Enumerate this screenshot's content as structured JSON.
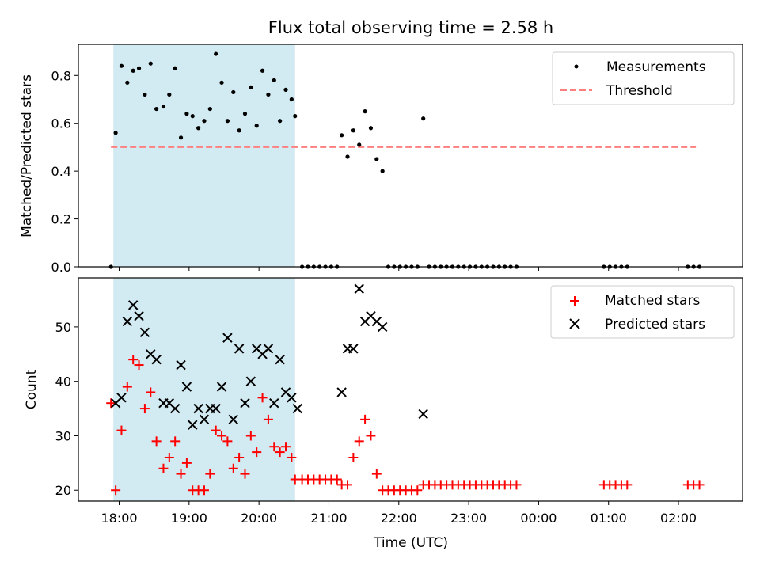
{
  "chart_data": [
    {
      "type": "scatter",
      "title": "Flux total observing time = 2.58 h",
      "ylabel": "Matched/Predicted stars",
      "xlabel": "",
      "ylim": [
        0,
        0.93
      ],
      "yticks": [
        0.0,
        0.2,
        0.4,
        0.6,
        0.8
      ],
      "ytick_labels": [
        "0.0",
        "0.2",
        "0.4",
        "0.6",
        "0.8"
      ],
      "legend_position": "top-right",
      "shaded_region": {
        "from": "17:55",
        "to": "20:31",
        "color": "#add8e6"
      },
      "series": [
        {
          "name": "Measurements",
          "marker": "dot",
          "color": "#000000",
          "points": [
            [
              "17:53",
              0.0
            ],
            [
              "17:57",
              0.56
            ],
            [
              "18:02",
              0.84
            ],
            [
              "18:07",
              0.77
            ],
            [
              "18:12",
              0.82
            ],
            [
              "18:17",
              0.83
            ],
            [
              "18:22",
              0.72
            ],
            [
              "18:27",
              0.85
            ],
            [
              "18:32",
              0.66
            ],
            [
              "18:38",
              0.67
            ],
            [
              "18:43",
              0.72
            ],
            [
              "18:48",
              0.83
            ],
            [
              "18:53",
              0.54
            ],
            [
              "18:58",
              0.64
            ],
            [
              "19:03",
              0.63
            ],
            [
              "19:08",
              0.58
            ],
            [
              "19:13",
              0.61
            ],
            [
              "19:18",
              0.66
            ],
            [
              "19:23",
              0.89
            ],
            [
              "19:28",
              0.77
            ],
            [
              "19:33",
              0.61
            ],
            [
              "19:38",
              0.73
            ],
            [
              "19:43",
              0.57
            ],
            [
              "19:48",
              0.64
            ],
            [
              "19:53",
              0.75
            ],
            [
              "19:58",
              0.59
            ],
            [
              "20:03",
              0.82
            ],
            [
              "20:08",
              0.72
            ],
            [
              "20:13",
              0.78
            ],
            [
              "20:18",
              0.61
            ],
            [
              "20:23",
              0.74
            ],
            [
              "20:28",
              0.7
            ],
            [
              "20:31",
              0.63
            ],
            [
              "20:37",
              0.0
            ],
            [
              "20:42",
              0.0
            ],
            [
              "20:47",
              0.0
            ],
            [
              "20:52",
              0.0
            ],
            [
              "20:57",
              0.0
            ],
            [
              "21:02",
              0.0
            ],
            [
              "21:07",
              0.0
            ],
            [
              "21:11",
              0.55
            ],
            [
              "21:16",
              0.46
            ],
            [
              "21:21",
              0.57
            ],
            [
              "21:26",
              0.51
            ],
            [
              "21:31",
              0.65
            ],
            [
              "21:36",
              0.58
            ],
            [
              "21:41",
              0.45
            ],
            [
              "21:46",
              0.4
            ],
            [
              "21:51",
              0.0
            ],
            [
              "21:56",
              0.0
            ],
            [
              "22:01",
              0.0
            ],
            [
              "22:06",
              0.0
            ],
            [
              "22:11",
              0.0
            ],
            [
              "22:16",
              0.0
            ],
            [
              "22:21",
              0.62
            ],
            [
              "22:26",
              0.0
            ],
            [
              "22:31",
              0.0
            ],
            [
              "22:36",
              0.0
            ],
            [
              "22:41",
              0.0
            ],
            [
              "22:46",
              0.0
            ],
            [
              "22:51",
              0.0
            ],
            [
              "22:56",
              0.0
            ],
            [
              "23:01",
              0.0
            ],
            [
              "23:06",
              0.0
            ],
            [
              "23:11",
              0.0
            ],
            [
              "23:16",
              0.0
            ],
            [
              "23:21",
              0.0
            ],
            [
              "23:26",
              0.0
            ],
            [
              "23:31",
              0.0
            ],
            [
              "23:36",
              0.0
            ],
            [
              "23:41",
              0.0
            ],
            [
              "00:56",
              0.0
            ],
            [
              "01:01",
              0.0
            ],
            [
              "01:06",
              0.0
            ],
            [
              "01:11",
              0.0
            ],
            [
              "01:16",
              0.0
            ],
            [
              "02:08",
              0.0
            ],
            [
              "02:13",
              0.0
            ],
            [
              "02:18",
              0.0
            ]
          ]
        },
        {
          "name": "Threshold",
          "marker": "dashed-line",
          "color": "#ff7f7f",
          "points": [
            [
              "17:53",
              0.5
            ],
            [
              "02:15",
              0.5
            ]
          ]
        }
      ]
    },
    {
      "type": "scatter",
      "title": "",
      "ylabel": "Count",
      "xlabel": "Time (UTC)",
      "ylim": [
        18,
        59
      ],
      "yticks": [
        20,
        30,
        40,
        50
      ],
      "ytick_labels": [
        "20",
        "30",
        "40",
        "50"
      ],
      "xticks": [
        "18:00",
        "19:00",
        "20:00",
        "21:00",
        "22:00",
        "23:00",
        "00:00",
        "01:00",
        "02:00"
      ],
      "legend_position": "top-right",
      "shaded_region": {
        "from": "17:55",
        "to": "20:31",
        "color": "#add8e6"
      },
      "series": [
        {
          "name": "Matched stars",
          "marker": "plus",
          "color": "#ff0000",
          "points": [
            [
              "17:53",
              36
            ],
            [
              "17:57",
              20
            ],
            [
              "18:02",
              31
            ],
            [
              "18:07",
              39
            ],
            [
              "18:12",
              44
            ],
            [
              "18:17",
              43
            ],
            [
              "18:22",
              35
            ],
            [
              "18:27",
              38
            ],
            [
              "18:32",
              29
            ],
            [
              "18:38",
              24
            ],
            [
              "18:43",
              26
            ],
            [
              "18:48",
              29
            ],
            [
              "18:53",
              23
            ],
            [
              "18:58",
              25
            ],
            [
              "19:03",
              20
            ],
            [
              "19:08",
              20
            ],
            [
              "19:13",
              20
            ],
            [
              "19:18",
              23
            ],
            [
              "19:23",
              31
            ],
            [
              "19:28",
              30
            ],
            [
              "19:33",
              29
            ],
            [
              "19:38",
              24
            ],
            [
              "19:43",
              26
            ],
            [
              "19:48",
              23
            ],
            [
              "19:53",
              30
            ],
            [
              "19:58",
              27
            ],
            [
              "20:03",
              37
            ],
            [
              "20:08",
              33
            ],
            [
              "20:13",
              28
            ],
            [
              "20:18",
              27
            ],
            [
              "20:23",
              28
            ],
            [
              "20:28",
              26
            ],
            [
              "20:31",
              22
            ],
            [
              "20:37",
              22
            ],
            [
              "20:42",
              22
            ],
            [
              "20:47",
              22
            ],
            [
              "20:52",
              22
            ],
            [
              "20:57",
              22
            ],
            [
              "21:02",
              22
            ],
            [
              "21:07",
              22
            ],
            [
              "21:11",
              21
            ],
            [
              "21:16",
              21
            ],
            [
              "21:21",
              26
            ],
            [
              "21:26",
              29
            ],
            [
              "21:31",
              33
            ],
            [
              "21:36",
              30
            ],
            [
              "21:41",
              23
            ],
            [
              "21:46",
              20
            ],
            [
              "21:51",
              20
            ],
            [
              "21:56",
              20
            ],
            [
              "22:01",
              20
            ],
            [
              "22:06",
              20
            ],
            [
              "22:11",
              20
            ],
            [
              "22:16",
              20
            ],
            [
              "22:21",
              21
            ],
            [
              "22:26",
              21
            ],
            [
              "22:31",
              21
            ],
            [
              "22:36",
              21
            ],
            [
              "22:41",
              21
            ],
            [
              "22:46",
              21
            ],
            [
              "22:51",
              21
            ],
            [
              "22:56",
              21
            ],
            [
              "23:01",
              21
            ],
            [
              "23:06",
              21
            ],
            [
              "23:11",
              21
            ],
            [
              "23:16",
              21
            ],
            [
              "23:21",
              21
            ],
            [
              "23:26",
              21
            ],
            [
              "23:31",
              21
            ],
            [
              "23:36",
              21
            ],
            [
              "23:41",
              21
            ],
            [
              "00:56",
              21
            ],
            [
              "01:01",
              21
            ],
            [
              "01:06",
              21
            ],
            [
              "01:11",
              21
            ],
            [
              "01:16",
              21
            ],
            [
              "02:08",
              21
            ],
            [
              "02:13",
              21
            ],
            [
              "02:18",
              21
            ]
          ]
        },
        {
          "name": "Predicted stars",
          "marker": "x",
          "color": "#000000",
          "points": [
            [
              "17:57",
              36
            ],
            [
              "18:02",
              37
            ],
            [
              "18:07",
              51
            ],
            [
              "18:12",
              54
            ],
            [
              "18:17",
              52
            ],
            [
              "18:22",
              49
            ],
            [
              "18:27",
              45
            ],
            [
              "18:32",
              44
            ],
            [
              "18:38",
              36
            ],
            [
              "18:43",
              36
            ],
            [
              "18:48",
              35
            ],
            [
              "18:53",
              43
            ],
            [
              "18:58",
              39
            ],
            [
              "19:03",
              32
            ],
            [
              "19:08",
              35
            ],
            [
              "19:13",
              33
            ],
            [
              "19:18",
              35
            ],
            [
              "19:23",
              35
            ],
            [
              "19:28",
              39
            ],
            [
              "19:33",
              48
            ],
            [
              "19:38",
              33
            ],
            [
              "19:43",
              46
            ],
            [
              "19:48",
              36
            ],
            [
              "19:53",
              40
            ],
            [
              "19:58",
              46
            ],
            [
              "20:03",
              45
            ],
            [
              "20:08",
              46
            ],
            [
              "20:13",
              36
            ],
            [
              "20:18",
              44
            ],
            [
              "20:23",
              38
            ],
            [
              "20:28",
              37
            ],
            [
              "20:33",
              35
            ],
            [
              "21:11",
              38
            ],
            [
              "21:16",
              46
            ],
            [
              "21:21",
              46
            ],
            [
              "21:26",
              57
            ],
            [
              "21:31",
              51
            ],
            [
              "21:36",
              52
            ],
            [
              "21:41",
              51
            ],
            [
              "21:46",
              50
            ],
            [
              "22:21",
              34
            ]
          ]
        }
      ]
    }
  ]
}
